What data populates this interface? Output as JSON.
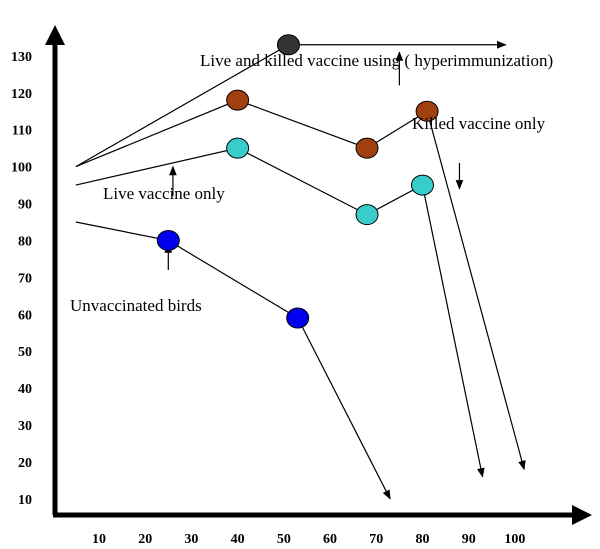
{
  "chart_data": {
    "type": "line",
    "title": "",
    "xlabel": "",
    "ylabel": "",
    "x_ticks": [
      "10",
      "20",
      "30",
      "40",
      "50",
      "60",
      "70",
      "80",
      "90",
      "100"
    ],
    "y_ticks": [
      "10",
      "20",
      "30",
      "40",
      "50",
      "60",
      "70",
      "80",
      "90",
      "100",
      "110",
      "120",
      "130"
    ],
    "series": [
      {
        "key": "hyper",
        "name": "Live and killed vaccine using ( hyperimmunization)",
        "color": "#000000",
        "marker": "#333333",
        "points": [
          [
            5,
            100
          ],
          [
            51,
            133
          ]
        ],
        "tail": [
          [
            51,
            133
          ],
          [
            98,
            133
          ]
        ]
      },
      {
        "key": "killed",
        "name": "Killed vaccine only",
        "color": "#000000",
        "marker": "#a0400e",
        "points": [
          [
            5,
            100
          ],
          [
            40,
            118
          ],
          [
            68,
            105
          ],
          [
            81,
            115
          ]
        ],
        "tail": [
          [
            81,
            115
          ],
          [
            102,
            18
          ]
        ]
      },
      {
        "key": "live",
        "name": "Live vaccine only",
        "color": "#000000",
        "marker": "#38cccc",
        "points": [
          [
            5,
            95
          ],
          [
            40,
            105
          ],
          [
            68,
            87
          ],
          [
            80,
            95
          ]
        ],
        "tail": [
          [
            80,
            95
          ],
          [
            93,
            16
          ]
        ]
      },
      {
        "key": "unvacc",
        "name": "Unvaccinated birds",
        "color": "#000000",
        "marker": "#0000ee",
        "points": [
          [
            5,
            85
          ],
          [
            25,
            80
          ],
          [
            53,
            59
          ]
        ],
        "tail": [
          [
            53,
            59
          ],
          [
            73,
            10
          ]
        ]
      }
    ],
    "annotations": [
      {
        "label": "Live and killed vaccine using ( hyperimmunization)",
        "pointer": [
          [
            75,
            122
          ],
          [
            75,
            131
          ]
        ]
      },
      {
        "label": "Killed vaccine only",
        "pointer": [
          [
            88,
            101
          ],
          [
            88,
            94
          ]
        ]
      },
      {
        "label": "Live vaccine only",
        "pointer": [
          [
            26,
            92
          ],
          [
            26,
            100
          ]
        ]
      },
      {
        "label": "Unvaccinated birds",
        "pointer": [
          [
            25,
            72
          ],
          [
            25,
            79
          ]
        ]
      }
    ],
    "xlim": [
      2,
      113
    ],
    "ylim": [
      7,
      137
    ],
    "grid": false,
    "legend": "none"
  }
}
